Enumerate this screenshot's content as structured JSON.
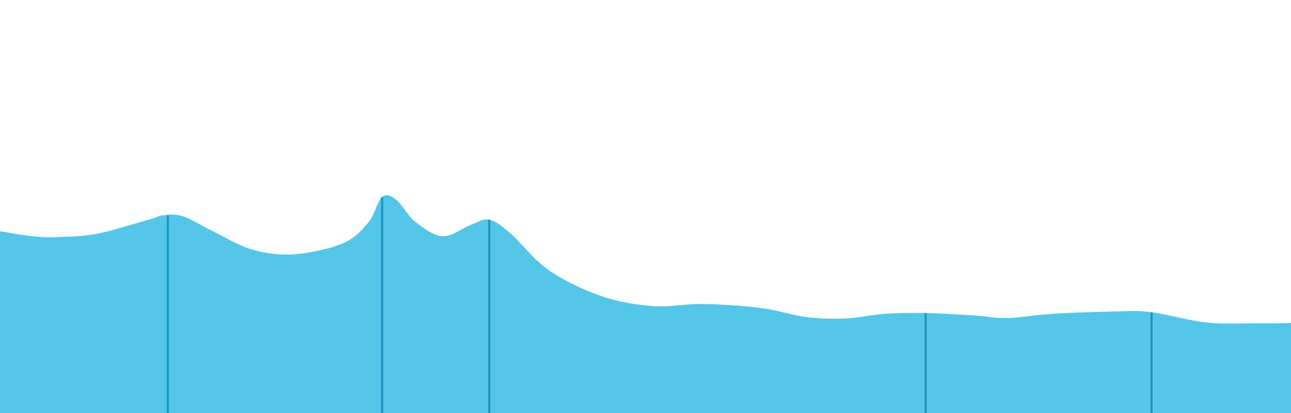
{
  "chart_data": {
    "type": "area",
    "title": "",
    "xlabel": "",
    "ylabel": "",
    "xlim": [
      0,
      100
    ],
    "ylim": [
      0,
      100
    ],
    "grid": false,
    "legend": "none",
    "series": [
      {
        "color": "#54c6e8",
        "points": [
          {
            "x": 0,
            "y": 44
          },
          {
            "x": 2.5,
            "y": 42.8
          },
          {
            "x": 4.5,
            "y": 42.6
          },
          {
            "x": 7.5,
            "y": 43.4
          },
          {
            "x": 11.5,
            "y": 46.8
          },
          {
            "x": 12.7,
            "y": 47.9
          },
          {
            "x": 14.2,
            "y": 47.6
          },
          {
            "x": 16.5,
            "y": 44.0
          },
          {
            "x": 19.5,
            "y": 39.6
          },
          {
            "x": 22.7,
            "y": 38.4
          },
          {
            "x": 26.5,
            "y": 41.0
          },
          {
            "x": 28.5,
            "y": 46.0
          },
          {
            "x": 29.6,
            "y": 52.3
          },
          {
            "x": 30.7,
            "y": 51.6
          },
          {
            "x": 32.2,
            "y": 46.2
          },
          {
            "x": 34.3,
            "y": 42.8
          },
          {
            "x": 36.5,
            "y": 45.6
          },
          {
            "x": 37.9,
            "y": 46.8
          },
          {
            "x": 39.5,
            "y": 43.6
          },
          {
            "x": 42.5,
            "y": 34.6
          },
          {
            "x": 46.5,
            "y": 28.4
          },
          {
            "x": 50.5,
            "y": 25.9
          },
          {
            "x": 54.5,
            "y": 26.4
          },
          {
            "x": 59.0,
            "y": 25.4
          },
          {
            "x": 62.5,
            "y": 23.2
          },
          {
            "x": 65.5,
            "y": 22.9
          },
          {
            "x": 68.5,
            "y": 24.0
          },
          {
            "x": 71.7,
            "y": 24.2
          },
          {
            "x": 75.5,
            "y": 23.6
          },
          {
            "x": 78.0,
            "y": 23.0
          },
          {
            "x": 81.5,
            "y": 24.0
          },
          {
            "x": 86.5,
            "y": 24.6
          },
          {
            "x": 89.2,
            "y": 24.4
          },
          {
            "x": 93.5,
            "y": 21.9
          },
          {
            "x": 97.5,
            "y": 21.7
          },
          {
            "x": 100,
            "y": 21.8
          }
        ]
      }
    ],
    "markers": [
      {
        "x": 13.0,
        "y": 47.9,
        "color": "#1b95bd"
      },
      {
        "x": 29.6,
        "y": 52.3,
        "color": "#1b95bd"
      },
      {
        "x": 37.9,
        "y": 46.8,
        "color": "#1b95bd"
      },
      {
        "x": 71.7,
        "y": 24.2,
        "color": "#1b95bd"
      },
      {
        "x": 89.2,
        "y": 24.4,
        "color": "#1b95bd"
      }
    ]
  }
}
